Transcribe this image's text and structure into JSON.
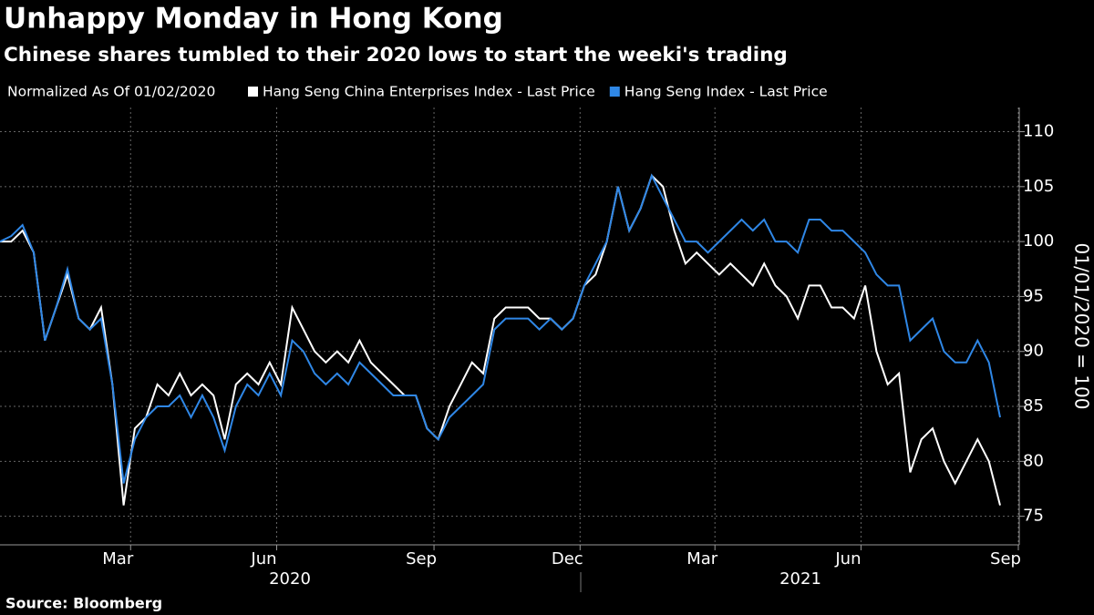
{
  "chart_data": {
    "type": "line",
    "title": "Unhappy Monday in Hong Kong",
    "subtitle": "Chinese shares tumbled to their 2020 lows to start the weeki's trading",
    "legend_title": "Normalized As Of 01/02/2020",
    "y_axis_label": "01/01/2020 = 100",
    "source": "Source: Bloomberg",
    "year_labels": [
      "2020",
      "2021"
    ],
    "categories": [
      null,
      null,
      null,
      null,
      null,
      null,
      null,
      null,
      null,
      null,
      "Mar",
      null,
      null,
      null,
      null,
      null,
      null,
      null,
      null,
      null,
      null,
      null,
      null,
      "Jun",
      null,
      null,
      null,
      null,
      null,
      null,
      null,
      null,
      null,
      null,
      null,
      null,
      null,
      "Sep",
      null,
      null,
      null,
      null,
      null,
      null,
      null,
      null,
      null,
      null,
      null,
      null,
      "Dec",
      null,
      null,
      null,
      null,
      null,
      null,
      null,
      null,
      null,
      null,
      null,
      "Mar",
      null,
      null,
      null,
      null,
      null,
      null,
      null,
      null,
      null,
      null,
      null,
      null,
      "Jun",
      null,
      null,
      null,
      null,
      null,
      null,
      null,
      null,
      null,
      null,
      null,
      null,
      null,
      "Sep"
    ],
    "series": [
      {
        "name": "Hang Seng China Enterprises Index - Last Price",
        "color": "#ffffff",
        "values": [
          100,
          100,
          101,
          99,
          91,
          94,
          97,
          93,
          92,
          94,
          87,
          76,
          83,
          84,
          87,
          86,
          88,
          86,
          87,
          86,
          82,
          87,
          88,
          87,
          89,
          87,
          94,
          92,
          90,
          89,
          90,
          89,
          91,
          89,
          88,
          87,
          86,
          86,
          83,
          82,
          85,
          87,
          89,
          88,
          93,
          94,
          94,
          94,
          93,
          93,
          92,
          93,
          96,
          97,
          100,
          105,
          101,
          103,
          106,
          105,
          101,
          98,
          99,
          98,
          97,
          98,
          97,
          96,
          98,
          96,
          95,
          93,
          96,
          96,
          94,
          94,
          93,
          96,
          90,
          87,
          88,
          79,
          82,
          83,
          80,
          78,
          80,
          82,
          80,
          76
        ]
      },
      {
        "name": "Hang Seng Index - Last Price",
        "color": "#2f87e6",
        "values": [
          100,
          100.5,
          101.5,
          99,
          91,
          94,
          97.5,
          93,
          92,
          93,
          87,
          78,
          82,
          84,
          85,
          85,
          86,
          84,
          86,
          84,
          81,
          85,
          87,
          86,
          88,
          86,
          91,
          90,
          88,
          87,
          88,
          87,
          89,
          88,
          87,
          86,
          86,
          86,
          83,
          82,
          84,
          85,
          86,
          87,
          92,
          93,
          93,
          93,
          92,
          93,
          92,
          93,
          96,
          98,
          100,
          105,
          101,
          103,
          106,
          104,
          102,
          100,
          100,
          99,
          100,
          101,
          102,
          101,
          102,
          100,
          100,
          99,
          102,
          102,
          101,
          101,
          100,
          99,
          97,
          96,
          96,
          91,
          92,
          93,
          90,
          89,
          89,
          91,
          89,
          84
        ]
      }
    ],
    "ylim": [
      72.4,
      112.2
    ],
    "yticks": [
      75,
      80,
      85,
      90,
      95,
      100,
      105,
      110
    ],
    "grid": true
  }
}
